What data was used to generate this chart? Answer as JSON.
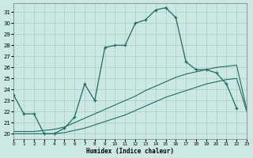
{
  "xlabel": "Humidex (Indice chaleur)",
  "bg_color": "#cce8e4",
  "grid_color": "#aaccC4",
  "line_color": "#236b60",
  "xlim": [
    0,
    23
  ],
  "ylim": [
    19.5,
    31.8
  ],
  "yticks": [
    20,
    21,
    22,
    23,
    24,
    25,
    26,
    27,
    28,
    29,
    30,
    31
  ],
  "xticks": [
    0,
    1,
    2,
    3,
    4,
    5,
    6,
    7,
    8,
    9,
    10,
    11,
    12,
    13,
    14,
    15,
    16,
    17,
    18,
    19,
    20,
    21,
    22,
    23
  ],
  "line1_x": [
    0,
    1,
    2,
    3,
    4,
    5,
    6,
    7,
    8,
    9,
    10,
    11,
    12,
    13,
    14,
    15,
    16,
    17,
    18,
    19,
    20,
    21,
    22
  ],
  "line1_y": [
    23.5,
    21.8,
    21.8,
    20.0,
    20.0,
    20.5,
    21.5,
    24.5,
    23.0,
    27.8,
    28.0,
    28.0,
    30.0,
    30.3,
    31.2,
    31.4,
    30.5,
    26.5,
    25.8,
    25.8,
    25.5,
    24.5,
    22.3
  ],
  "line2_x": [
    0,
    1,
    2,
    3,
    4,
    5,
    6,
    7,
    8,
    9,
    10,
    11,
    12,
    13,
    14,
    15,
    16,
    17,
    18,
    19,
    20,
    21,
    22,
    23
  ],
  "line2_y": [
    20.2,
    20.2,
    20.2,
    20.3,
    20.4,
    20.6,
    21.0,
    21.4,
    21.8,
    22.2,
    22.6,
    23.0,
    23.4,
    23.9,
    24.3,
    24.7,
    25.1,
    25.4,
    25.6,
    25.8,
    26.0,
    26.1,
    26.2,
    22.2
  ],
  "line3_x": [
    0,
    1,
    2,
    3,
    4,
    5,
    6,
    7,
    8,
    9,
    10,
    11,
    12,
    13,
    14,
    15,
    16,
    17,
    18,
    19,
    20,
    21,
    22,
    23
  ],
  "line3_y": [
    20.0,
    20.0,
    20.0,
    20.0,
    20.0,
    20.1,
    20.3,
    20.5,
    20.8,
    21.1,
    21.4,
    21.7,
    22.1,
    22.5,
    22.9,
    23.3,
    23.6,
    23.9,
    24.2,
    24.5,
    24.7,
    24.9,
    25.0,
    22.0
  ]
}
